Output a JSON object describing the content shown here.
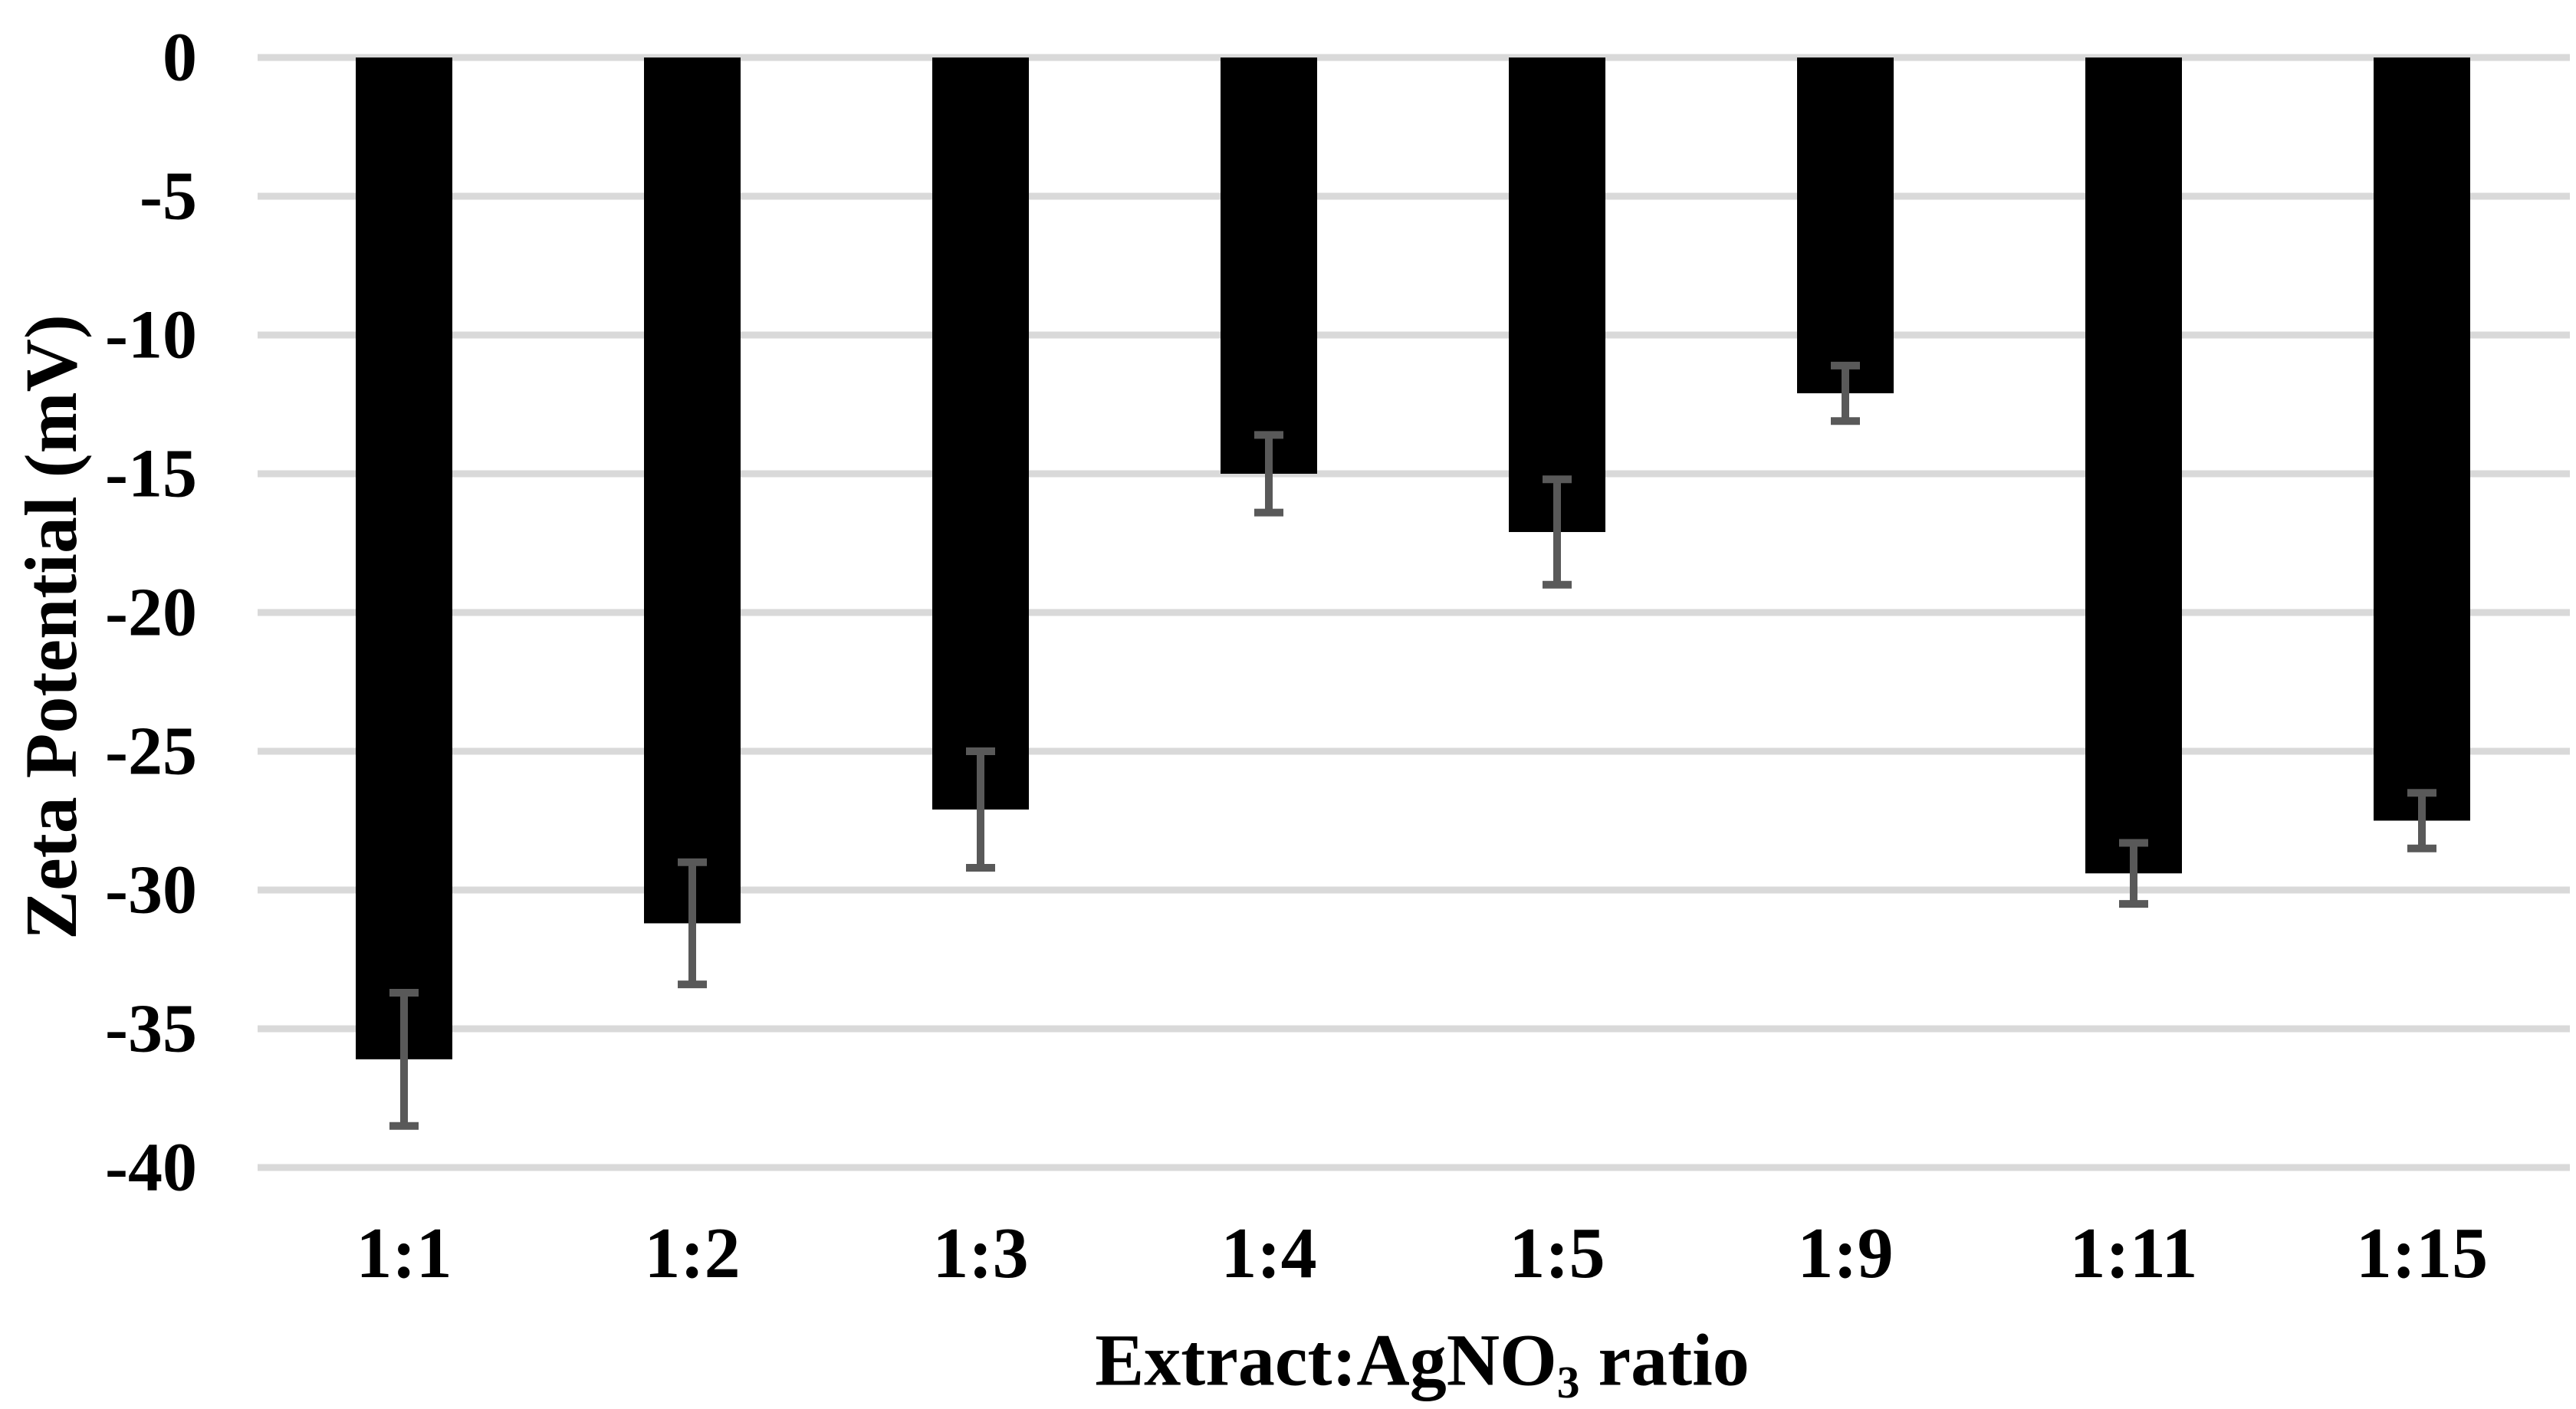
{
  "chart_data": {
    "type": "bar",
    "orientation": "vertical",
    "title": "",
    "ylabel": "Zeta Potential (mV)",
    "xlabel": {
      "prefix": "Extract:AgNO",
      "subscript": "3",
      "suffix": " ratio"
    },
    "categories": [
      "1:1",
      "1:2",
      "1:3",
      "1:4",
      "1:5",
      "1:9",
      "1:11",
      "1:15"
    ],
    "values": [
      -36.1,
      -31.2,
      -27.1,
      -15.0,
      -17.1,
      -12.1,
      -29.4,
      -27.5
    ],
    "errors": [
      2.4,
      2.2,
      2.1,
      1.4,
      1.9,
      1.0,
      1.1,
      1.0
    ],
    "ylim": [
      -40,
      0
    ],
    "ytick_step": 5,
    "yticks": [
      0,
      -5,
      -10,
      -15,
      -20,
      -25,
      -30,
      -35,
      -40
    ],
    "grid": true,
    "legend": false,
    "bar_color": "#000000",
    "error_bar_color": "#595959",
    "gridline_color": "#d9d9d9",
    "background_color": "#ffffff",
    "tick_label_color": "#000000"
  }
}
